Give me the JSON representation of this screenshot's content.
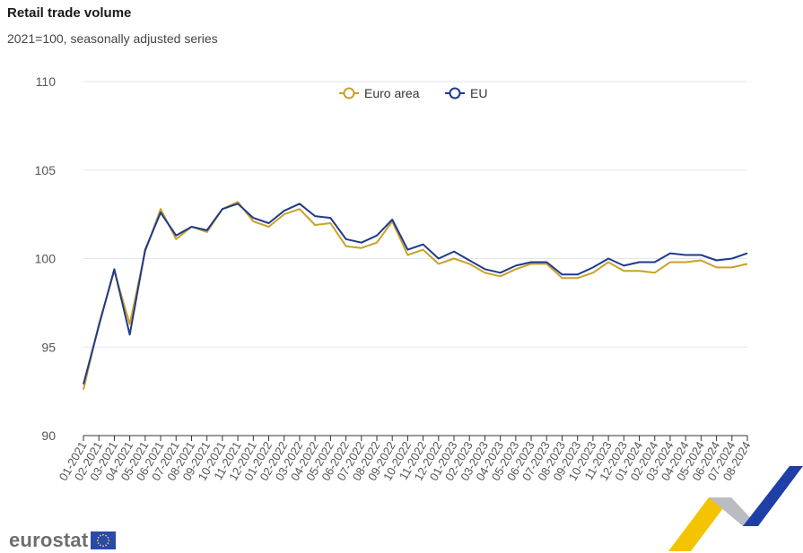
{
  "header": {
    "title": "Retail trade volume",
    "subtitle": "2021=100, seasonally adjusted series"
  },
  "logo": {
    "text": "eurostat"
  },
  "colors": {
    "euro_area": "#c9a227",
    "eu": "#1f3a8a",
    "grid": "#e3e6ee"
  },
  "chart_data": {
    "type": "line",
    "title": "Retail trade volume",
    "subtitle": "2021=100, seasonally adjusted series",
    "ylim": [
      90,
      110
    ],
    "yticks": [
      90,
      95,
      100,
      105,
      110
    ],
    "grid": true,
    "legend_position": "top-center",
    "categories": [
      "01-2021",
      "02-2021",
      "03-2021",
      "04-2021",
      "05-2021",
      "06-2021",
      "07-2021",
      "08-2021",
      "09-2021",
      "10-2021",
      "11-2021",
      "12-2021",
      "01-2022",
      "02-2022",
      "03-2022",
      "04-2022",
      "05-2022",
      "06-2022",
      "07-2022",
      "08-2022",
      "09-2022",
      "10-2022",
      "11-2022",
      "12-2022",
      "01-2023",
      "02-2023",
      "03-2023",
      "04-2023",
      "05-2023",
      "06-2023",
      "07-2023",
      "08-2023",
      "09-2023",
      "10-2023",
      "11-2023",
      "12-2023",
      "01-2024",
      "02-2024",
      "03-2024",
      "04-2024",
      "05-2024",
      "06-2024",
      "07-2024",
      "08-2024"
    ],
    "series": [
      {
        "name": "Euro area",
        "color": "#c9a227",
        "values": [
          92.6,
          96.3,
          99.3,
          96.3,
          100.4,
          102.8,
          101.1,
          101.8,
          101.5,
          102.8,
          103.2,
          102.1,
          101.8,
          102.5,
          102.8,
          101.9,
          102.0,
          100.7,
          100.6,
          100.9,
          102.1,
          100.2,
          100.5,
          99.7,
          100.0,
          99.7,
          99.2,
          99.0,
          99.4,
          99.7,
          99.7,
          98.9,
          98.9,
          99.2,
          99.8,
          99.3,
          99.3,
          99.2,
          99.8,
          99.8,
          99.9,
          99.5,
          99.5,
          99.7
        ]
      },
      {
        "name": "EU",
        "color": "#1f3a8a",
        "values": [
          92.9,
          96.2,
          99.4,
          95.7,
          100.5,
          102.6,
          101.3,
          101.8,
          101.6,
          102.8,
          103.1,
          102.3,
          102.0,
          102.7,
          103.1,
          102.4,
          102.3,
          101.1,
          100.9,
          101.3,
          102.2,
          100.5,
          100.8,
          100.0,
          100.4,
          99.9,
          99.4,
          99.2,
          99.6,
          99.8,
          99.8,
          99.1,
          99.1,
          99.5,
          100.0,
          99.6,
          99.8,
          99.8,
          100.3,
          100.2,
          100.2,
          99.9,
          100.0,
          100.3
        ]
      }
    ]
  }
}
